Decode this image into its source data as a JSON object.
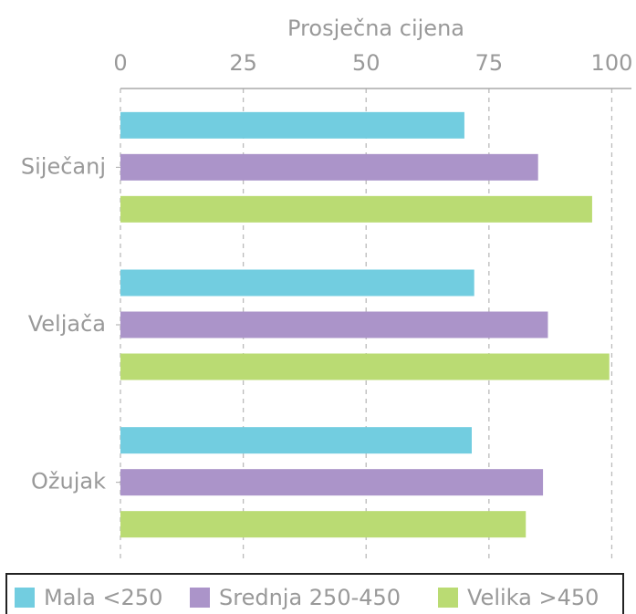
{
  "chart_data": {
    "type": "barh",
    "xlabel": "Prosječna cijena",
    "categories": [
      "Siječanj",
      "Veljača",
      "Ožujak"
    ],
    "series": [
      {
        "name": "Mala <250",
        "color": "#72cde0",
        "values": [
          70,
          72,
          71.5
        ]
      },
      {
        "name": "Srednja 250-450",
        "color": "#ab94c9",
        "values": [
          85,
          87,
          86
        ]
      },
      {
        "name": "Velika >450",
        "color": "#badb73",
        "values": [
          96,
          99.5,
          82.5
        ]
      }
    ],
    "xlim": [
      0,
      104
    ],
    "xticks": [
      0,
      25,
      50,
      75,
      100
    ],
    "grid": true,
    "legend": "bottom"
  }
}
